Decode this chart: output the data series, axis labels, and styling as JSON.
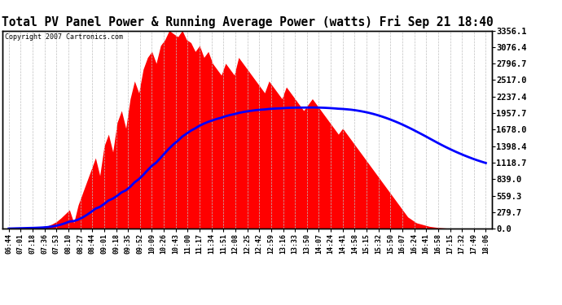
{
  "title": "Total PV Panel Power & Running Average Power (watts) Fri Sep 21 18:40",
  "copyright": "Copyright 2007 Cartronics.com",
  "ylabel_right": [
    "3356.1",
    "3076.4",
    "2796.7",
    "2517.0",
    "2237.4",
    "1957.7",
    "1678.0",
    "1398.4",
    "1118.7",
    "839.0",
    "559.3",
    "279.7",
    "0.0"
  ],
  "ymax": 3356.1,
  "ymin": 0.0,
  "yticks": [
    3356.1,
    3076.4,
    2796.7,
    2517.0,
    2237.4,
    1957.7,
    1678.0,
    1398.4,
    1118.7,
    839.0,
    559.3,
    279.7,
    0.0
  ],
  "xtick_labels": [
    "06:44",
    "07:01",
    "07:18",
    "07:36",
    "07:53",
    "08:10",
    "08:27",
    "08:44",
    "09:01",
    "09:18",
    "09:35",
    "09:52",
    "10:09",
    "10:26",
    "10:43",
    "11:00",
    "11:17",
    "11:34",
    "11:51",
    "12:08",
    "12:25",
    "12:42",
    "12:59",
    "13:16",
    "13:33",
    "13:50",
    "14:07",
    "14:24",
    "14:41",
    "14:58",
    "15:15",
    "15:32",
    "15:50",
    "16:07",
    "16:24",
    "16:41",
    "16:58",
    "17:15",
    "17:32",
    "17:49",
    "18:06"
  ],
  "bar_color": "#FF0000",
  "line_color": "#0000FF",
  "background_color": "#FFFFFF",
  "plot_bg_color": "#FFFFFF",
  "grid_color": "#C0C0C0",
  "title_fontsize": 11,
  "pv_power": [
    5,
    8,
    10,
    15,
    20,
    18,
    25,
    30,
    40,
    50,
    80,
    120,
    180,
    250,
    320,
    100,
    400,
    600,
    800,
    1000,
    1200,
    900,
    1400,
    1600,
    1300,
    1800,
    2000,
    1700,
    2200,
    2500,
    2300,
    2700,
    2900,
    3000,
    2800,
    3100,
    3200,
    3356,
    3300,
    3250,
    3356,
    3200,
    3150,
    3000,
    3100,
    2900,
    3000,
    2800,
    2700,
    2600,
    2800,
    2700,
    2600,
    2900,
    2800,
    2700,
    2600,
    2500,
    2400,
    2300,
    2500,
    2400,
    2300,
    2200,
    2400,
    2300,
    2200,
    2100,
    2000,
    2100,
    2200,
    2100,
    2000,
    1900,
    1800,
    1700,
    1600,
    1700,
    1600,
    1500,
    1400,
    1300,
    1200,
    1100,
    1000,
    900,
    800,
    700,
    600,
    500,
    400,
    300,
    200,
    150,
    100,
    80,
    60,
    40,
    30,
    20,
    15,
    10,
    8,
    5,
    3,
    2,
    1,
    0,
    0,
    0,
    5
  ],
  "running_avg": [
    3,
    5,
    7,
    9,
    11,
    13,
    15,
    18,
    22,
    28,
    38,
    52,
    70,
    94,
    122,
    130,
    155,
    190,
    235,
    285,
    340,
    370,
    420,
    478,
    510,
    558,
    615,
    650,
    710,
    785,
    840,
    910,
    990,
    1065,
    1120,
    1200,
    1280,
    1360,
    1430,
    1490,
    1560,
    1610,
    1660,
    1700,
    1745,
    1780,
    1810,
    1835,
    1860,
    1880,
    1905,
    1925,
    1940,
    1960,
    1975,
    1988,
    1998,
    2008,
    2015,
    2020,
    2028,
    2033,
    2037,
    2040,
    2045,
    2048,
    2050,
    2051,
    2051,
    2052,
    2053,
    2052,
    2050,
    2047,
    2043,
    2038,
    2032,
    2028,
    2022,
    2015,
    2005,
    1993,
    1979,
    1963,
    1945,
    1924,
    1901,
    1876,
    1849,
    1820,
    1789,
    1756,
    1721,
    1685,
    1647,
    1609,
    1570,
    1530,
    1490,
    1450,
    1412,
    1375,
    1340,
    1306,
    1274,
    1243,
    1214,
    1186,
    1160,
    1136,
    1113
  ]
}
